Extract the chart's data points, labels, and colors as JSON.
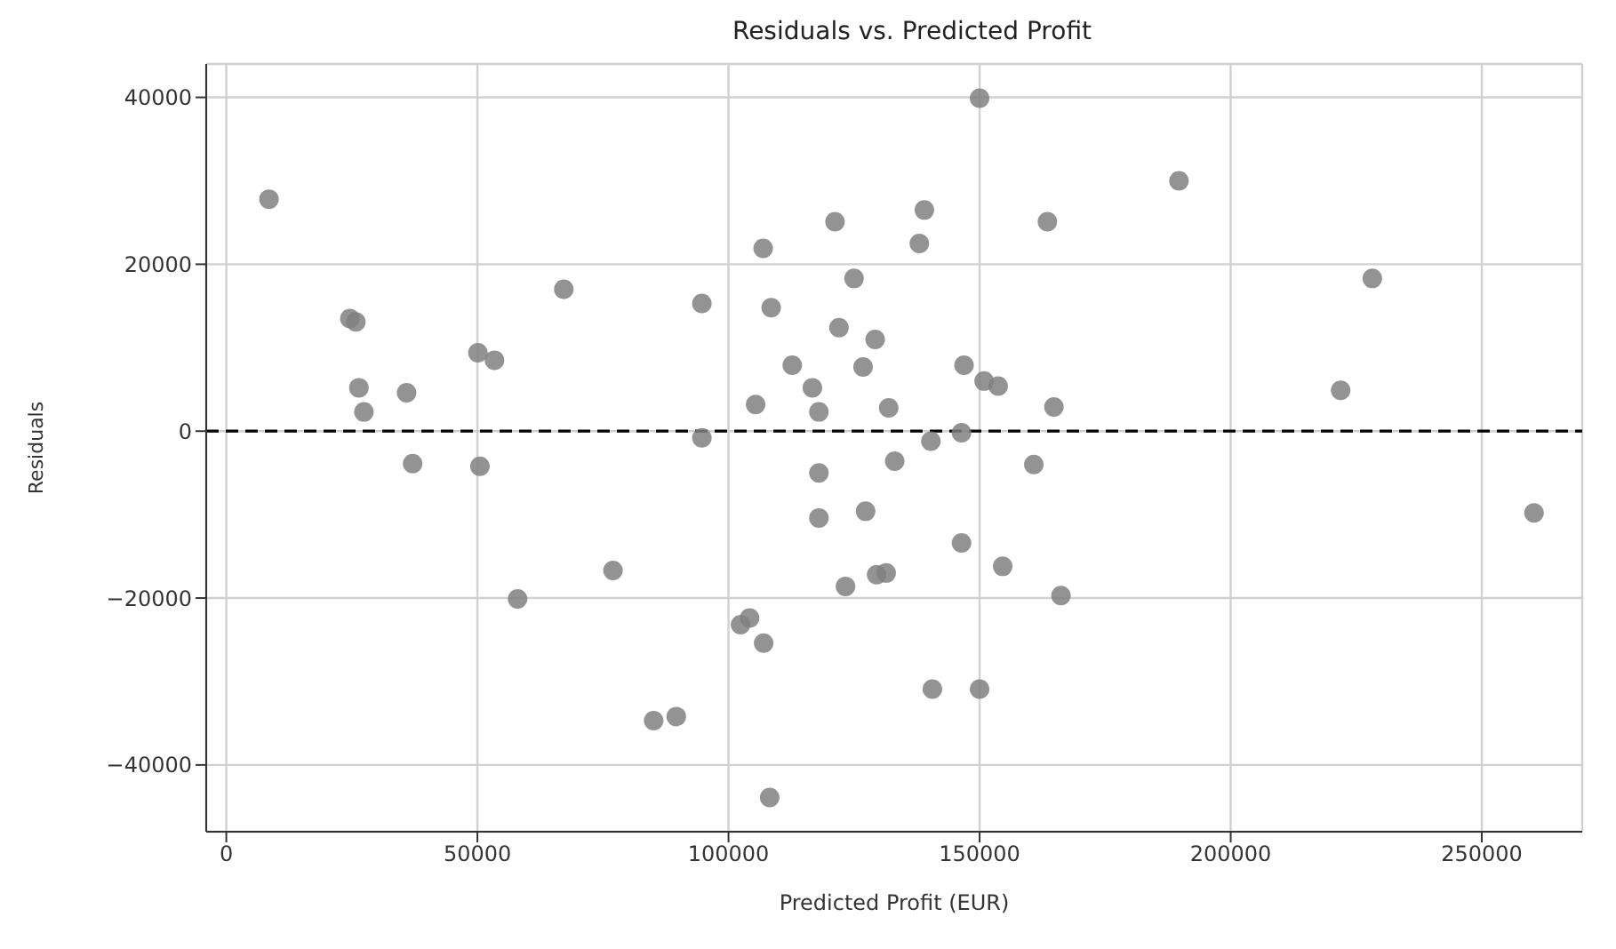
{
  "chart_data": {
    "type": "scatter",
    "title": "Residuals vs. Predicted Profit",
    "xlabel": "Predicted Profit (EUR)",
    "ylabel": "Residuals",
    "color": "#808080",
    "marker": "circle",
    "grid": true,
    "xlim": [
      -4000,
      270000
    ],
    "xticks": [
      0,
      50000,
      100000,
      150000,
      200000,
      250000
    ],
    "ylim": [
      -48000,
      44000
    ],
    "yticks": [
      -40000,
      -20000,
      0,
      20000,
      40000
    ],
    "ref_lines": [
      {
        "axis": "y",
        "value": 0,
        "color": "#000000",
        "line_style": "dashed"
      }
    ],
    "x": [
      8500,
      24600,
      25800,
      26400,
      27400,
      35900,
      37100,
      50100,
      53400,
      50500,
      67200,
      77000,
      58000,
      85100,
      89600,
      94700,
      94700,
      106900,
      108500,
      121200,
      139000,
      138000,
      150000,
      163500,
      125000,
      122000,
      129200,
      112700,
      126800,
      146900,
      150900,
      153700,
      116700,
      105400,
      118000,
      131900,
      164800,
      146400,
      140300,
      133100,
      160800,
      118000,
      118000,
      127300,
      146400,
      154600,
      129500,
      131400,
      123300,
      166200,
      104200,
      102400,
      107000,
      140600,
      150000,
      108200,
      189700,
      228200,
      221900,
      260400
    ],
    "values": [
      27800,
      13500,
      13100,
      5200,
      2300,
      4600,
      -3900,
      9400,
      8500,
      -4200,
      17000,
      -16700,
      -20100,
      -34700,
      -34200,
      15300,
      -800,
      21900,
      14800,
      25100,
      26500,
      22500,
      39900,
      25100,
      18300,
      12400,
      11000,
      7900,
      7700,
      7900,
      6000,
      5400,
      5200,
      3200,
      2300,
      2800,
      2900,
      -200,
      -1200,
      -3600,
      -4000,
      -5000,
      -10400,
      -9600,
      -13400,
      -16200,
      -17200,
      -17000,
      -18600,
      -19700,
      -22400,
      -23200,
      -25400,
      -30900,
      -30900,
      -43900,
      30000,
      18300,
      4900,
      -9800
    ]
  }
}
